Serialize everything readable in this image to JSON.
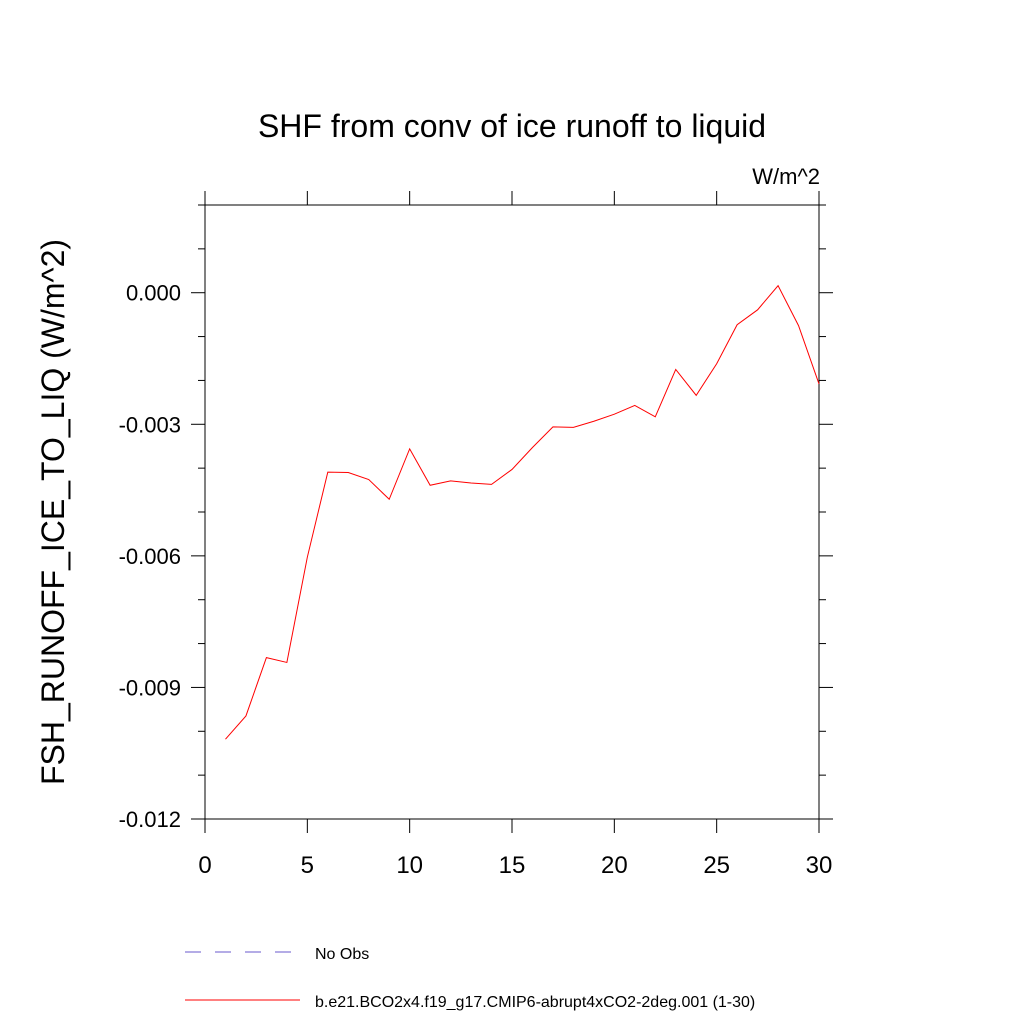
{
  "chart_data": {
    "type": "line",
    "title": "SHF from conv of ice runoff to liquid",
    "units_label": "W/m^2",
    "xlabel": "",
    "ylabel": "FSH_RUNOFF_ICE_TO_LIQ  (W/m^2)",
    "xlim": [
      0,
      30
    ],
    "ylim": [
      -0.012,
      0.002
    ],
    "x_ticks": [
      0,
      5,
      10,
      15,
      20,
      25,
      30
    ],
    "x_tick_labels": [
      "0",
      "5",
      "10",
      "15",
      "20",
      "25",
      "30"
    ],
    "y_ticks": [
      -0.012,
      -0.009,
      -0.006,
      -0.003,
      0.0
    ],
    "y_tick_labels": [
      "-0.012",
      "-0.009",
      "-0.006",
      "-0.003",
      "0.000"
    ],
    "y_minor_step": 0.001,
    "x_minor_step": 1,
    "grid": false,
    "legend_position": "bottom",
    "series": [
      {
        "name": "No Obs",
        "color": "#6a5acd",
        "dashed": true,
        "x": [],
        "y": []
      },
      {
        "name": "b.e21.BCO2x4.f19_g17.CMIP6-abrupt4xCO2-2deg.001 (1-30)",
        "color": "#ff0000",
        "dashed": false,
        "x": [
          1,
          2,
          3,
          4,
          5,
          6,
          7,
          8,
          9,
          10,
          11,
          12,
          13,
          14,
          15,
          16,
          17,
          18,
          19,
          20,
          21,
          22,
          23,
          24,
          25,
          26,
          27,
          28,
          29,
          30
        ],
        "y": [
          -0.01018,
          -0.00965,
          -0.00832,
          -0.00843,
          -0.00603,
          -0.00409,
          -0.0041,
          -0.00426,
          -0.00471,
          -0.00356,
          -0.00439,
          -0.00429,
          -0.00434,
          -0.00437,
          -0.00403,
          -0.00353,
          -0.00306,
          -0.00307,
          -0.00293,
          -0.00277,
          -0.00257,
          -0.00283,
          -0.00175,
          -0.00234,
          -0.00162,
          -0.00073,
          -0.00039,
          0.00016,
          -0.00075,
          -0.00208
        ]
      }
    ]
  }
}
